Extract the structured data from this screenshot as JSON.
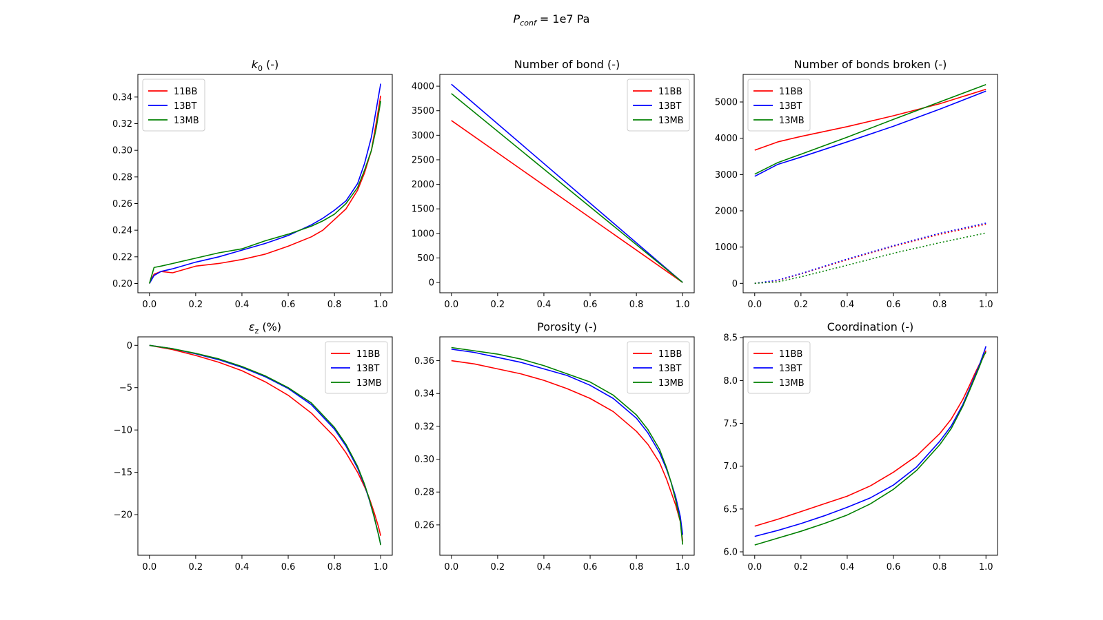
{
  "suptitle": {
    "base": "P",
    "sub": "conf",
    "rest": " = 1e7 Pa"
  },
  "colors": {
    "11BB": "#ff0000",
    "13BT": "#0000ff",
    "13MB": "#008000"
  },
  "chart_data": [
    {
      "id": "k0",
      "type": "line",
      "title": {
        "base": "k",
        "sub": "0",
        "rest": " (-)"
      },
      "xlim": [
        -0.05,
        1.05
      ],
      "ylim": [
        0.193,
        0.357
      ],
      "xticks": [
        0,
        0.2,
        0.4,
        0.6,
        0.8,
        1.0
      ],
      "xtick_labels": [
        "0.0",
        "0.2",
        "0.4",
        "0.6",
        "0.8",
        "1.0"
      ],
      "yticks": [
        0.2,
        0.22,
        0.24,
        0.26,
        0.28,
        0.3,
        0.32,
        0.34
      ],
      "ytick_labels": [
        "0.20",
        "0.22",
        "0.24",
        "0.26",
        "0.28",
        "0.30",
        "0.32",
        "0.34"
      ],
      "legend": "upper-left",
      "series": [
        {
          "name": "11BB",
          "x": [
            0,
            0.02,
            0.05,
            0.1,
            0.2,
            0.3,
            0.4,
            0.5,
            0.6,
            0.7,
            0.75,
            0.8,
            0.85,
            0.9,
            0.93,
            0.96,
            0.98,
            1.0
          ],
          "y": [
            0.2,
            0.207,
            0.209,
            0.208,
            0.213,
            0.215,
            0.218,
            0.222,
            0.228,
            0.235,
            0.24,
            0.248,
            0.256,
            0.27,
            0.283,
            0.3,
            0.32,
            0.341
          ]
        },
        {
          "name": "13BT",
          "x": [
            0,
            0.02,
            0.05,
            0.1,
            0.2,
            0.3,
            0.4,
            0.5,
            0.6,
            0.7,
            0.75,
            0.8,
            0.85,
            0.9,
            0.93,
            0.96,
            0.98,
            1.0
          ],
          "y": [
            0.2,
            0.206,
            0.209,
            0.211,
            0.216,
            0.22,
            0.225,
            0.23,
            0.236,
            0.244,
            0.249,
            0.255,
            0.262,
            0.275,
            0.29,
            0.31,
            0.33,
            0.35
          ]
        },
        {
          "name": "13MB",
          "x": [
            0,
            0.02,
            0.05,
            0.1,
            0.2,
            0.3,
            0.4,
            0.5,
            0.6,
            0.7,
            0.75,
            0.8,
            0.85,
            0.9,
            0.93,
            0.96,
            0.98,
            1.0
          ],
          "y": [
            0.2,
            0.212,
            0.213,
            0.215,
            0.219,
            0.223,
            0.226,
            0.232,
            0.237,
            0.243,
            0.247,
            0.252,
            0.26,
            0.272,
            0.285,
            0.3,
            0.316,
            0.337
          ]
        }
      ]
    },
    {
      "id": "bonds",
      "type": "line",
      "title": {
        "base": "Number of bond (-)",
        "sub": "",
        "rest": ""
      },
      "xlim": [
        -0.05,
        1.05
      ],
      "ylim": [
        -210,
        4240
      ],
      "xticks": [
        0,
        0.2,
        0.4,
        0.6,
        0.8,
        1.0
      ],
      "xtick_labels": [
        "0.0",
        "0.2",
        "0.4",
        "0.6",
        "0.8",
        "1.0"
      ],
      "yticks": [
        0,
        500,
        1000,
        1500,
        2000,
        2500,
        3000,
        3500,
        4000
      ],
      "ytick_labels": [
        "0",
        "500",
        "1000",
        "1500",
        "2000",
        "2500",
        "3000",
        "3500",
        "4000"
      ],
      "legend": "upper-right",
      "series": [
        {
          "name": "11BB",
          "x": [
            0,
            1.0
          ],
          "y": [
            3300,
            0
          ]
        },
        {
          "name": "13BT",
          "x": [
            0,
            1.0
          ],
          "y": [
            4040,
            0
          ]
        },
        {
          "name": "13MB",
          "x": [
            0,
            1.0
          ],
          "y": [
            3850,
            0
          ]
        }
      ]
    },
    {
      "id": "broken",
      "type": "line",
      "title": {
        "base": "Number of bonds broken (-)",
        "sub": "",
        "rest": ""
      },
      "xlim": [
        -0.05,
        1.05
      ],
      "ylim": [
        -260,
        5760
      ],
      "xticks": [
        0,
        0.2,
        0.4,
        0.6,
        0.8,
        1.0
      ],
      "xtick_labels": [
        "0.0",
        "0.2",
        "0.4",
        "0.6",
        "0.8",
        "1.0"
      ],
      "yticks": [
        0,
        1000,
        2000,
        3000,
        4000,
        5000
      ],
      "ytick_labels": [
        "0",
        "1000",
        "2000",
        "3000",
        "4000",
        "5000"
      ],
      "legend": "upper-left",
      "series": [
        {
          "name": "11BB",
          "x": [
            0,
            0.1,
            0.2,
            0.4,
            0.6,
            0.8,
            1.0
          ],
          "y": [
            3670,
            3900,
            4050,
            4320,
            4620,
            4950,
            5350
          ]
        },
        {
          "name": "13BT",
          "x": [
            0,
            0.1,
            0.2,
            0.4,
            0.6,
            0.8,
            1.0
          ],
          "y": [
            2950,
            3280,
            3480,
            3900,
            4330,
            4800,
            5300
          ]
        },
        {
          "name": "13MB",
          "x": [
            0,
            0.1,
            0.2,
            0.4,
            0.6,
            0.8,
            1.0
          ],
          "y": [
            3010,
            3330,
            3560,
            4030,
            4520,
            5000,
            5480
          ]
        },
        {
          "name": "11BB",
          "legend": false,
          "dashed": true,
          "x": [
            0,
            0.1,
            0.2,
            0.4,
            0.6,
            0.8,
            1.0
          ],
          "y": [
            0,
            80,
            260,
            650,
            1020,
            1350,
            1630
          ]
        },
        {
          "name": "13BT",
          "legend": false,
          "dashed": true,
          "x": [
            0,
            0.1,
            0.2,
            0.4,
            0.6,
            0.8,
            1.0
          ],
          "y": [
            0,
            90,
            270,
            670,
            1040,
            1380,
            1660
          ]
        },
        {
          "name": "13MB",
          "legend": false,
          "dashed": true,
          "x": [
            0,
            0.1,
            0.2,
            0.4,
            0.6,
            0.8,
            1.0
          ],
          "y": [
            0,
            40,
            180,
            500,
            830,
            1120,
            1390
          ]
        }
      ]
    },
    {
      "id": "strain",
      "type": "line",
      "title": {
        "base": "ε",
        "sub": "z",
        "rest": " (%)"
      },
      "xlim": [
        -0.05,
        1.05
      ],
      "ylim": [
        -24.8,
        1.0
      ],
      "xticks": [
        0,
        0.2,
        0.4,
        0.6,
        0.8,
        1.0
      ],
      "xtick_labels": [
        "0.0",
        "0.2",
        "0.4",
        "0.6",
        "0.8",
        "1.0"
      ],
      "yticks": [
        0,
        -5,
        -10,
        -15,
        -20
      ],
      "ytick_labels": [
        "0",
        "−5",
        "−10",
        "−15",
        "−20"
      ],
      "legend": "upper-right",
      "series": [
        {
          "name": "11BB",
          "x": [
            0,
            0.1,
            0.2,
            0.3,
            0.4,
            0.5,
            0.6,
            0.7,
            0.8,
            0.85,
            0.9,
            0.93,
            0.95,
            0.97,
            0.99,
            1.0
          ],
          "y": [
            0,
            -0.5,
            -1.2,
            -2.0,
            -3.0,
            -4.3,
            -5.9,
            -8.0,
            -10.8,
            -12.7,
            -15.0,
            -16.7,
            -18.0,
            -19.6,
            -21.4,
            -22.5
          ]
        },
        {
          "name": "13BT",
          "x": [
            0,
            0.1,
            0.2,
            0.3,
            0.4,
            0.5,
            0.6,
            0.7,
            0.8,
            0.85,
            0.9,
            0.93,
            0.95,
            0.97,
            0.99,
            1.0
          ],
          "y": [
            0,
            -0.4,
            -1.0,
            -1.7,
            -2.6,
            -3.7,
            -5.1,
            -7.0,
            -9.9,
            -11.9,
            -14.5,
            -16.5,
            -18.2,
            -20.1,
            -22.3,
            -23.5
          ]
        },
        {
          "name": "13MB",
          "x": [
            0,
            0.1,
            0.2,
            0.3,
            0.4,
            0.5,
            0.6,
            0.7,
            0.8,
            0.85,
            0.9,
            0.93,
            0.95,
            0.97,
            0.99,
            1.0
          ],
          "y": [
            0,
            -0.4,
            -0.95,
            -1.6,
            -2.5,
            -3.6,
            -5.0,
            -6.8,
            -9.7,
            -11.7,
            -14.3,
            -16.4,
            -18.1,
            -20.1,
            -22.3,
            -23.6
          ]
        }
      ]
    },
    {
      "id": "porosity",
      "type": "line",
      "title": {
        "base": "Porosity (-)",
        "sub": "",
        "rest": ""
      },
      "xlim": [
        -0.05,
        1.05
      ],
      "ylim": [
        0.2415,
        0.3745
      ],
      "xticks": [
        0,
        0.2,
        0.4,
        0.6,
        0.8,
        1.0
      ],
      "xtick_labels": [
        "0.0",
        "0.2",
        "0.4",
        "0.6",
        "0.8",
        "1.0"
      ],
      "yticks": [
        0.26,
        0.28,
        0.3,
        0.32,
        0.34,
        0.36
      ],
      "ytick_labels": [
        "0.26",
        "0.28",
        "0.30",
        "0.32",
        "0.34",
        "0.36"
      ],
      "legend": "upper-right",
      "series": [
        {
          "name": "11BB",
          "x": [
            0,
            0.1,
            0.2,
            0.3,
            0.4,
            0.5,
            0.6,
            0.7,
            0.8,
            0.85,
            0.9,
            0.93,
            0.95,
            0.97,
            0.99,
            1.0
          ],
          "y": [
            0.36,
            0.358,
            0.355,
            0.352,
            0.348,
            0.343,
            0.337,
            0.329,
            0.317,
            0.309,
            0.298,
            0.288,
            0.28,
            0.272,
            0.262,
            0.25
          ]
        },
        {
          "name": "13BT",
          "x": [
            0,
            0.1,
            0.2,
            0.3,
            0.4,
            0.5,
            0.6,
            0.7,
            0.8,
            0.85,
            0.9,
            0.93,
            0.95,
            0.97,
            0.99,
            1.0
          ],
          "y": [
            0.367,
            0.365,
            0.362,
            0.359,
            0.355,
            0.351,
            0.345,
            0.337,
            0.325,
            0.316,
            0.304,
            0.294,
            0.286,
            0.277,
            0.265,
            0.254
          ]
        },
        {
          "name": "13MB",
          "x": [
            0,
            0.1,
            0.2,
            0.3,
            0.4,
            0.5,
            0.6,
            0.7,
            0.8,
            0.85,
            0.9,
            0.93,
            0.95,
            0.97,
            0.99,
            1.0
          ],
          "y": [
            0.368,
            0.366,
            0.364,
            0.361,
            0.357,
            0.352,
            0.347,
            0.339,
            0.327,
            0.318,
            0.306,
            0.295,
            0.286,
            0.275,
            0.262,
            0.248
          ]
        }
      ]
    },
    {
      "id": "coordination",
      "type": "line",
      "title": {
        "base": "Coordination (-)",
        "sub": "",
        "rest": ""
      },
      "xlim": [
        -0.05,
        1.05
      ],
      "ylim": [
        5.96,
        8.51
      ],
      "xticks": [
        0,
        0.2,
        0.4,
        0.6,
        0.8,
        1.0
      ],
      "xtick_labels": [
        "0.0",
        "0.2",
        "0.4",
        "0.6",
        "0.8",
        "1.0"
      ],
      "yticks": [
        6.0,
        6.5,
        7.0,
        7.5,
        8.0,
        8.5
      ],
      "ytick_labels": [
        "6.0",
        "6.5",
        "7.0",
        "7.5",
        "8.0",
        "8.5"
      ],
      "legend": "upper-left",
      "series": [
        {
          "name": "11BB",
          "x": [
            0,
            0.1,
            0.2,
            0.3,
            0.4,
            0.5,
            0.6,
            0.7,
            0.8,
            0.85,
            0.9,
            0.93,
            0.95,
            0.97,
            0.99,
            1.0
          ],
          "y": [
            6.3,
            6.38,
            6.47,
            6.56,
            6.65,
            6.77,
            6.93,
            7.12,
            7.38,
            7.55,
            7.78,
            7.95,
            8.07,
            8.18,
            8.28,
            8.35
          ]
        },
        {
          "name": "13BT",
          "x": [
            0,
            0.1,
            0.2,
            0.3,
            0.4,
            0.5,
            0.6,
            0.7,
            0.8,
            0.85,
            0.9,
            0.93,
            0.95,
            0.97,
            0.99,
            1.0
          ],
          "y": [
            6.18,
            6.25,
            6.33,
            6.42,
            6.52,
            6.63,
            6.78,
            6.99,
            7.29,
            7.47,
            7.72,
            7.91,
            8.04,
            8.17,
            8.32,
            8.4
          ]
        },
        {
          "name": "13MB",
          "x": [
            0,
            0.1,
            0.2,
            0.3,
            0.4,
            0.5,
            0.6,
            0.7,
            0.8,
            0.85,
            0.9,
            0.93,
            0.95,
            0.97,
            0.99,
            1.0
          ],
          "y": [
            6.08,
            6.16,
            6.24,
            6.33,
            6.43,
            6.56,
            6.73,
            6.95,
            7.25,
            7.44,
            7.7,
            7.89,
            8.02,
            8.15,
            8.29,
            8.33
          ]
        }
      ]
    }
  ]
}
